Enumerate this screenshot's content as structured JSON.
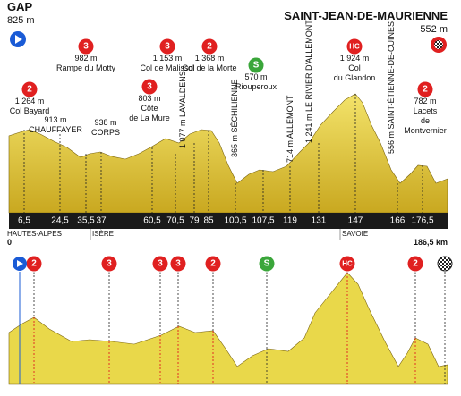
{
  "start": {
    "name": "GAP",
    "altitude": "825 m",
    "region": "HAUTES-ALPES",
    "km": "0"
  },
  "finish": {
    "name": "SAINT-JEAN-DE-MAURIENNE",
    "altitude": "552 m",
    "region": "SAVOIE",
    "km": "186,5 km"
  },
  "regions": [
    "ISÈRE"
  ],
  "km_markers": [
    "6,5",
    "24,5",
    "35,5",
    "37",
    "60,5",
    "70,5",
    "79",
    "85",
    "100,5",
    "107,5",
    "119",
    "131",
    "147",
    "166",
    "176,5"
  ],
  "climbs": [
    {
      "category": "2",
      "lines": [
        "1 264 m",
        "Col Bayard"
      ]
    },
    {
      "category": "3",
      "lines": [
        "982 m",
        "Rampe du Motty"
      ]
    },
    {
      "category": "3",
      "lines": [
        "803 m",
        "Côte",
        "de La Mure"
      ]
    },
    {
      "category": "3",
      "lines": [
        "1 153 m",
        "Col de Malissol"
      ]
    },
    {
      "category": "2",
      "lines": [
        "1 368 m",
        "Col de la Morte"
      ]
    },
    {
      "category": "S",
      "lines": [
        "570 m",
        "Riouperoux"
      ]
    },
    {
      "category": "HC",
      "lines": [
        "1 924 m",
        "Col",
        "du Glandon"
      ]
    },
    {
      "category": "2",
      "lines": [
        "782 m",
        "Lacets",
        "de",
        "Montvernier"
      ]
    }
  ],
  "towns": [
    {
      "lines": [
        "913 m",
        "CHAUFFAYER"
      ]
    },
    {
      "lines": [
        "938 m",
        "CORPS"
      ]
    }
  ],
  "vertical_towns": [
    "1 077 m  LAVALDENS",
    "365 m  SÉCHILIENNE",
    "714 m  ALLEMONT",
    "1 241 m  LE RIVIER D'ALLEMONT",
    "556 m  SAINT-ÉTIENNE-DE-CUINES"
  ]
}
